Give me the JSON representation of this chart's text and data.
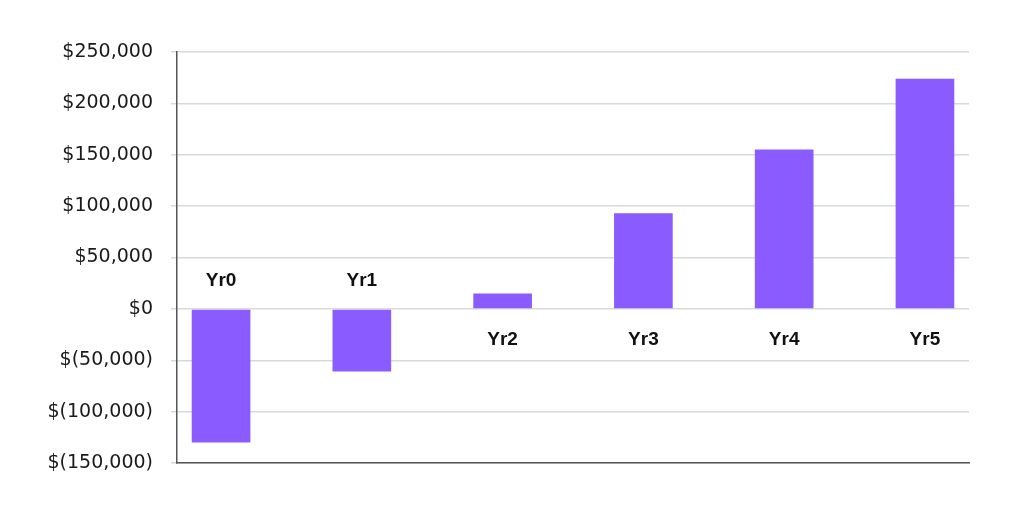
{
  "chart_data": {
    "type": "bar",
    "categories": [
      "Yr0",
      "Yr1",
      "Yr2",
      "Yr3",
      "Yr4",
      "Yr5"
    ],
    "values": [
      -130000,
      -61000,
      15000,
      93000,
      155000,
      224000
    ],
    "color": "#8a5bff",
    "ylim": [
      -150000,
      250000
    ],
    "yticks": [
      {
        "value": -150000,
        "label": "$(150,000)"
      },
      {
        "value": -100000,
        "label": "$(100,000)"
      },
      {
        "value": -50000,
        "label": "$(50,000)"
      },
      {
        "value": 0,
        "label": "$0"
      },
      {
        "value": 50000,
        "label": "$50,000"
      },
      {
        "value": 100000,
        "label": "$100,000"
      },
      {
        "value": 150000,
        "label": "$150,000"
      },
      {
        "value": 200000,
        "label": "$200,000"
      },
      {
        "value": 250000,
        "label": "$250,000"
      }
    ],
    "grid": "y"
  }
}
